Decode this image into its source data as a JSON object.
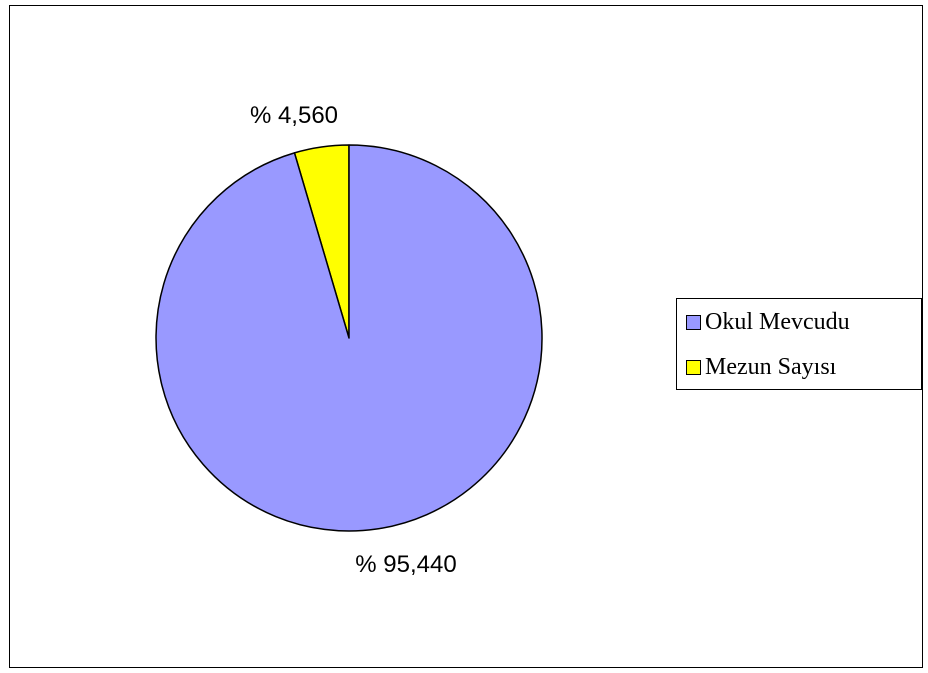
{
  "chart_data": {
    "type": "pie",
    "title": "",
    "slices": [
      {
        "name": "Okul Mevcudu",
        "value": 95.44,
        "label": "% 95,440",
        "color": "#9999ff"
      },
      {
        "name": "Mezun Sayısı",
        "value": 4.56,
        "label": "% 4,560",
        "color": "#ffff00"
      }
    ],
    "legend_position": "right",
    "start_angle": "top",
    "direction": "counter-clockwise"
  }
}
